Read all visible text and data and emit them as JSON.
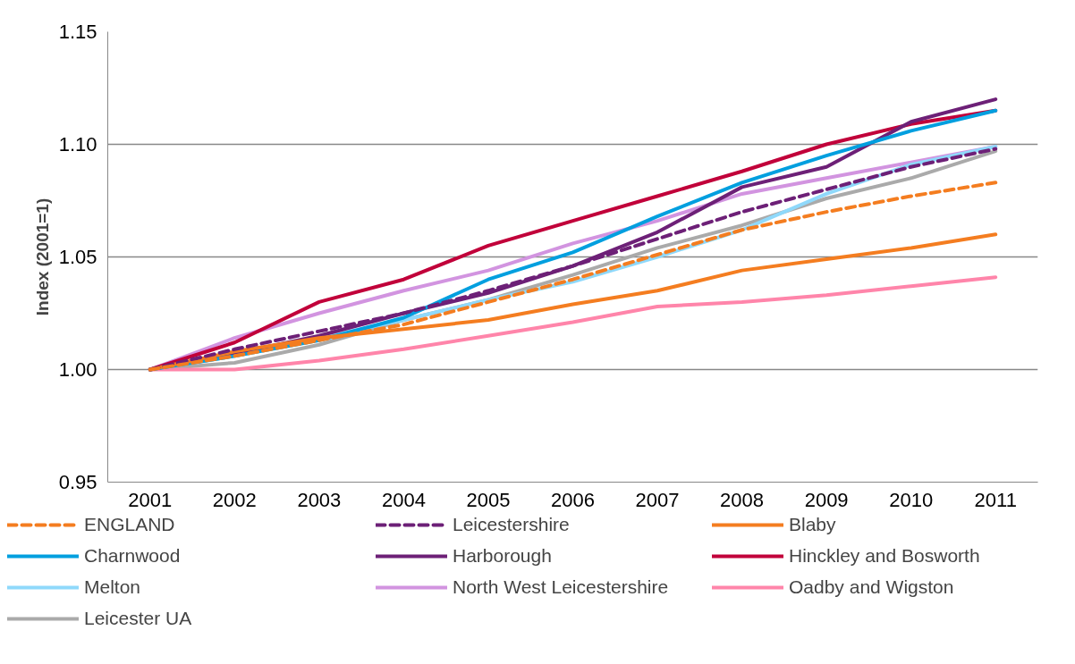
{
  "chart_data": {
    "type": "line",
    "ylabel": "Index (2001=1)",
    "categories": [
      "2001",
      "2002",
      "2003",
      "2004",
      "2005",
      "2006",
      "2007",
      "2008",
      "2009",
      "2010",
      "2011"
    ],
    "ylim": [
      0.95,
      1.15
    ],
    "yticks": [
      {
        "value": 0.95,
        "label": "0.95"
      },
      {
        "value": 1.0,
        "label": "1.00"
      },
      {
        "value": 1.05,
        "label": "1.05"
      },
      {
        "value": 1.1,
        "label": "1.10"
      },
      {
        "value": 1.15,
        "label": "1.15"
      }
    ],
    "grid": "y",
    "legend": "bottom",
    "series": [
      {
        "name": "ENGLAND",
        "color": "#f47d20",
        "line_style": "dashed",
        "values": [
          1.0,
          1.006,
          1.013,
          1.02,
          1.03,
          1.04,
          1.051,
          1.062,
          1.07,
          1.077,
          1.083
        ]
      },
      {
        "name": "Leicestershire",
        "color": "#6d2077",
        "line_style": "dashed",
        "values": [
          1.0,
          1.009,
          1.017,
          1.025,
          1.035,
          1.046,
          1.058,
          1.07,
          1.08,
          1.09,
          1.098
        ]
      },
      {
        "name": "Blaby",
        "color": "#f47d20",
        "values": [
          1.0,
          1.008,
          1.014,
          1.018,
          1.022,
          1.029,
          1.035,
          1.044,
          1.049,
          1.054,
          1.06
        ]
      },
      {
        "name": "Charnwood",
        "color": "#009fdf",
        "values": [
          1.0,
          1.006,
          1.013,
          1.023,
          1.04,
          1.052,
          1.068,
          1.083,
          1.095,
          1.106,
          1.115
        ]
      },
      {
        "name": "Harborough",
        "color": "#6d2077",
        "values": [
          1.0,
          1.007,
          1.015,
          1.025,
          1.034,
          1.046,
          1.061,
          1.081,
          1.09,
          1.11,
          1.12
        ]
      },
      {
        "name": "Hinckley and Bosworth",
        "color": "#c1003a",
        "values": [
          1.0,
          1.012,
          1.03,
          1.04,
          1.055,
          1.066,
          1.077,
          1.088,
          1.1,
          1.109,
          1.115
        ]
      },
      {
        "name": "Melton",
        "color": "#8fd9fb",
        "values": [
          1.0,
          1.006,
          1.014,
          1.022,
          1.031,
          1.039,
          1.05,
          1.062,
          1.078,
          1.091,
          1.099
        ]
      },
      {
        "name": "North West Leicestershire",
        "color": "#d294e0",
        "values": [
          1.0,
          1.014,
          1.025,
          1.035,
          1.044,
          1.056,
          1.066,
          1.078,
          1.085,
          1.092,
          1.099
        ]
      },
      {
        "name": "Oadby and Wigston",
        "color": "#ff85aa",
        "values": [
          1.0,
          1.0,
          1.004,
          1.009,
          1.015,
          1.021,
          1.028,
          1.03,
          1.033,
          1.037,
          1.041
        ]
      },
      {
        "name": "Leicester UA",
        "color": "#aaaaaa",
        "values": [
          1.0,
          1.003,
          1.011,
          1.022,
          1.031,
          1.042,
          1.054,
          1.064,
          1.076,
          1.085,
          1.097
        ]
      }
    ]
  }
}
